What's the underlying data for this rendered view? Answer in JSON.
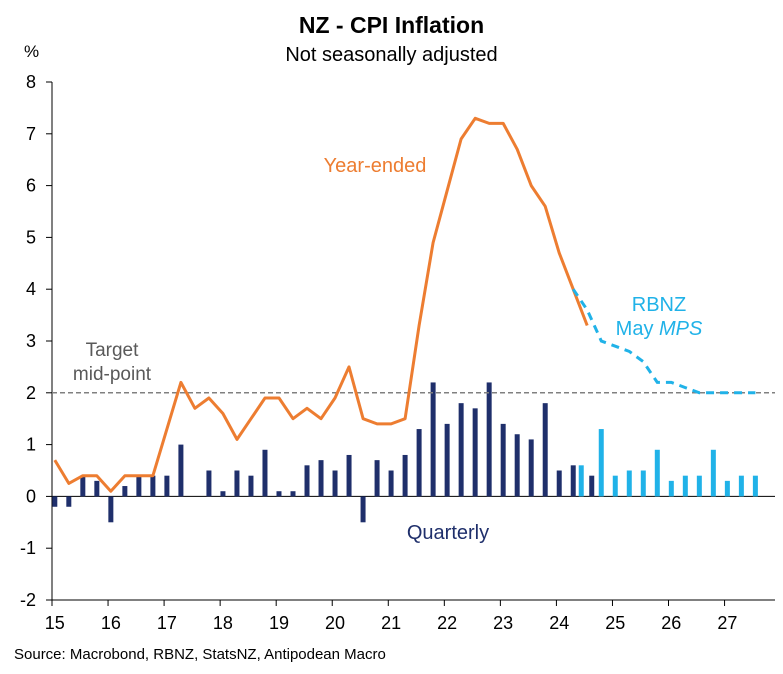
{
  "title": "NZ - CPI Inflation",
  "subtitle": "Not seasonally adjusted",
  "source": "Source: Macrobond, RBNZ, StatsNZ, Antipodean Macro",
  "colors": {
    "year_ended": "#ED7D31",
    "quarterly_actual": "#1F2F6B",
    "forecast": "#20B2E8",
    "target_line": "#808080"
  },
  "chart_data": {
    "type": "bar+line",
    "ylabel": "%",
    "ylim": [
      -2,
      8
    ],
    "yticks": [
      "-2",
      "-1",
      "0",
      "1",
      "2",
      "3",
      "4",
      "5",
      "6",
      "7",
      "8"
    ],
    "x_tick_labels": [
      "15",
      "16",
      "17",
      "18",
      "19",
      "20",
      "21",
      "22",
      "23",
      "24",
      "25",
      "26",
      "27"
    ],
    "target": {
      "value": 2,
      "label_line1": "Target",
      "label_line2": "mid-point"
    },
    "annotations": {
      "year_ended": "Year-ended",
      "quarterly": "Quarterly",
      "forecast_line1": "RBNZ",
      "forecast_line2_prefix": "May ",
      "forecast_line2_italic": "MPS"
    },
    "series": [
      {
        "name": "Year-ended",
        "type": "line",
        "x": [
          2015.0,
          2015.25,
          2015.5,
          2015.75,
          2016.0,
          2016.25,
          2016.5,
          2016.75,
          2017.0,
          2017.25,
          2017.5,
          2017.75,
          2018.0,
          2018.25,
          2018.5,
          2018.75,
          2019.0,
          2019.25,
          2019.5,
          2019.75,
          2020.0,
          2020.25,
          2020.5,
          2020.75,
          2021.0,
          2021.25,
          2021.5,
          2021.75,
          2022.0,
          2022.25,
          2022.5,
          2022.75,
          2023.0,
          2023.25,
          2023.5,
          2023.75,
          2024.0,
          2024.25,
          2024.5
        ],
        "values": [
          0.7,
          0.25,
          0.4,
          0.4,
          0.1,
          0.4,
          0.4,
          0.4,
          1.3,
          2.2,
          1.7,
          1.9,
          1.6,
          1.1,
          1.5,
          1.9,
          1.9,
          1.5,
          1.7,
          1.5,
          1.9,
          2.5,
          1.5,
          1.4,
          1.4,
          1.5,
          3.3,
          4.9,
          5.9,
          6.9,
          7.3,
          7.2,
          7.2,
          6.7,
          6.0,
          5.6,
          4.7,
          4.0,
          3.3
        ]
      },
      {
        "name": "RBNZ May MPS (year-ended forecast)",
        "type": "line",
        "style": "dashed",
        "x": [
          2024.25,
          2024.5,
          2024.75,
          2025.0,
          2025.25,
          2025.5,
          2025.75,
          2026.0,
          2026.25,
          2026.5,
          2026.75,
          2027.0,
          2027.25,
          2027.5
        ],
        "values": [
          4.0,
          3.6,
          3.0,
          2.9,
          2.8,
          2.6,
          2.2,
          2.2,
          2.1,
          2.0,
          2.0,
          2.0,
          2.0,
          2.0
        ]
      },
      {
        "name": "Quarterly",
        "type": "bar",
        "x": [
          2015.0,
          2015.25,
          2015.5,
          2015.75,
          2016.0,
          2016.25,
          2016.5,
          2016.75,
          2017.0,
          2017.25,
          2017.5,
          2017.75,
          2018.0,
          2018.25,
          2018.5,
          2018.75,
          2019.0,
          2019.25,
          2019.5,
          2019.75,
          2020.0,
          2020.25,
          2020.5,
          2020.75,
          2021.0,
          2021.25,
          2021.5,
          2021.75,
          2022.0,
          2022.25,
          2022.5,
          2022.75,
          2023.0,
          2023.25,
          2023.5,
          2023.75,
          2024.0,
          2024.25
        ],
        "values": [
          -0.2,
          -0.2,
          0.4,
          0.3,
          -0.5,
          0.2,
          0.4,
          0.4,
          0.4,
          1.0,
          0.0,
          0.5,
          0.1,
          0.5,
          0.4,
          0.9,
          0.1,
          0.1,
          0.6,
          0.7,
          0.5,
          0.8,
          -0.5,
          0.7,
          0.5,
          0.8,
          1.3,
          2.2,
          1.4,
          1.8,
          1.7,
          2.2,
          1.4,
          1.2,
          1.1,
          1.8,
          0.5,
          0.6
        ]
      },
      {
        "name": "Quarterly (RBNZ forecast)",
        "type": "bar",
        "x": [
          2024.5,
          2024.75,
          2025.0,
          2025.25,
          2025.5,
          2025.75,
          2026.0,
          2026.25,
          2026.5,
          2026.75,
          2027.0,
          2027.25,
          2027.5
        ],
        "values": [
          0.6,
          1.3,
          0.4,
          0.5,
          0.5,
          0.9,
          0.3,
          0.4,
          0.4,
          0.9,
          0.3,
          0.4,
          0.4
        ]
      }
    ],
    "quarterly_actual_last_bar": {
      "x": 2024.5,
      "value": 0.4
    }
  }
}
